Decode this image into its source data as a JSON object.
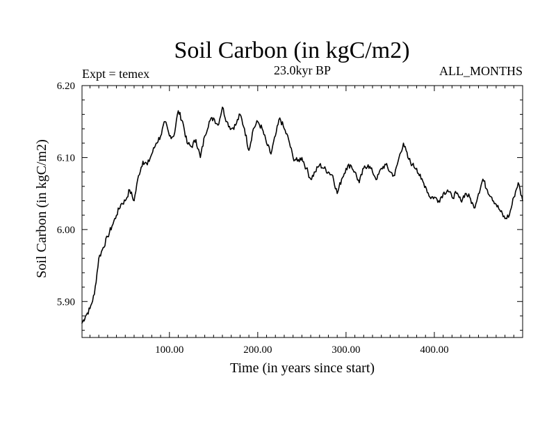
{
  "chart_data": {
    "type": "line",
    "title": "Soil Carbon (in kgC/m2)",
    "subtitle_left": "Expt = temex",
    "subtitle_center": "23.0kyr BP",
    "subtitle_right": "ALL_MONTHS",
    "xlabel": "Time (in years since start)",
    "ylabel": "Soil Carbon (in kgC/m2)",
    "xlim": [
      1,
      500
    ],
    "ylim": [
      5.85,
      6.2
    ],
    "x_ticks": [
      100,
      200,
      300,
      400
    ],
    "x_tick_labels": [
      "100.00",
      "200.00",
      "300.00",
      "400.00"
    ],
    "y_ticks": [
      5.9,
      6.0,
      6.1,
      6.2
    ],
    "y_tick_labels": [
      "5.90",
      "6.00",
      "6.10",
      "6.20"
    ],
    "grid": false,
    "series": [
      {
        "name": "Soil Carbon",
        "color": "#000000",
        "x": [
          1,
          5,
          10,
          15,
          20,
          25,
          30,
          35,
          40,
          45,
          50,
          55,
          60,
          65,
          70,
          75,
          80,
          85,
          90,
          95,
          100,
          105,
          110,
          115,
          120,
          125,
          130,
          135,
          140,
          145,
          150,
          155,
          160,
          165,
          170,
          175,
          180,
          185,
          190,
          195,
          200,
          205,
          210,
          215,
          220,
          225,
          230,
          235,
          240,
          245,
          250,
          255,
          260,
          265,
          270,
          275,
          280,
          285,
          290,
          295,
          300,
          305,
          310,
          315,
          320,
          325,
          330,
          335,
          340,
          345,
          350,
          355,
          360,
          365,
          370,
          375,
          380,
          385,
          390,
          395,
          400,
          405,
          410,
          415,
          420,
          425,
          430,
          435,
          440,
          445,
          450,
          455,
          460,
          465,
          470,
          475,
          480,
          485,
          490,
          495,
          500
        ],
        "values": [
          5.87,
          5.88,
          5.89,
          5.91,
          5.96,
          5.975,
          5.99,
          6.005,
          6.02,
          6.035,
          6.04,
          6.055,
          6.04,
          6.075,
          6.095,
          6.09,
          6.105,
          6.12,
          6.13,
          6.15,
          6.13,
          6.13,
          6.165,
          6.15,
          6.12,
          6.115,
          6.125,
          6.1,
          6.13,
          6.15,
          6.155,
          6.145,
          6.17,
          6.15,
          6.14,
          6.145,
          6.16,
          6.14,
          6.11,
          6.14,
          6.15,
          6.14,
          6.12,
          6.105,
          6.13,
          6.155,
          6.14,
          6.125,
          6.1,
          6.095,
          6.1,
          6.085,
          6.07,
          6.08,
          6.09,
          6.085,
          6.08,
          6.075,
          6.05,
          6.07,
          6.085,
          6.09,
          6.08,
          6.065,
          6.085,
          6.09,
          6.08,
          6.07,
          6.085,
          6.09,
          6.08,
          6.075,
          6.1,
          6.12,
          6.1,
          6.09,
          6.085,
          6.07,
          6.06,
          6.045,
          6.045,
          6.04,
          6.05,
          6.055,
          6.045,
          6.05,
          6.04,
          6.05,
          6.045,
          6.03,
          6.05,
          6.07,
          6.055,
          6.045,
          6.035,
          6.025,
          6.015,
          6.02,
          6.045,
          6.065,
          6.04
        ]
      }
    ]
  }
}
